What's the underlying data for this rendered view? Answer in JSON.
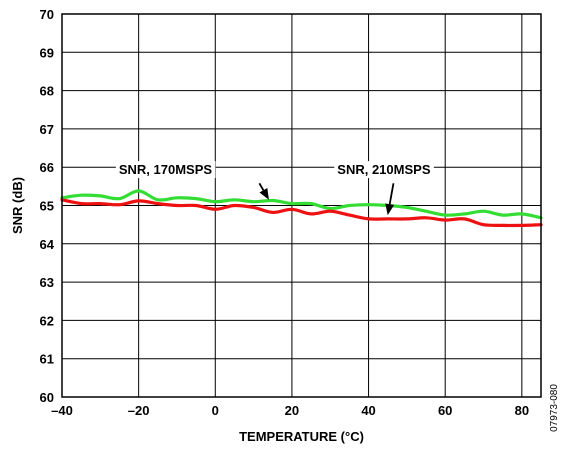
{
  "figure_id": "07973-080",
  "chart_data": {
    "type": "line",
    "title": "",
    "xlabel": "TEMPERATURE (°C)",
    "ylabel": "SNR (dB)",
    "xlim": [
      -40,
      85
    ],
    "ylim": [
      60,
      70
    ],
    "xticks": [
      -40,
      -20,
      0,
      20,
      40,
      60,
      80
    ],
    "xtick_labels": [
      "–40",
      "–20",
      "0",
      "20",
      "40",
      "60",
      "80"
    ],
    "yticks": [
      60,
      61,
      62,
      63,
      64,
      65,
      66,
      67,
      68,
      69,
      70
    ],
    "grid": true,
    "series": [
      {
        "name": "SNR, 170MSPS",
        "color": "#33dd33",
        "x": [
          -40,
          -35,
          -30,
          -25,
          -20,
          -15,
          -10,
          -5,
          0,
          5,
          10,
          15,
          20,
          25,
          30,
          35,
          40,
          45,
          50,
          55,
          60,
          65,
          70,
          75,
          80,
          85
        ],
        "y": [
          65.2,
          65.27,
          65.25,
          65.18,
          65.38,
          65.15,
          65.2,
          65.18,
          65.1,
          65.15,
          65.1,
          65.13,
          65.05,
          65.05,
          64.92,
          65.0,
          65.02,
          65.0,
          64.95,
          64.85,
          64.75,
          64.78,
          64.85,
          64.75,
          64.78,
          64.68
        ]
      },
      {
        "name": "SNR, 210MSPS",
        "color": "#ee1111",
        "x": [
          -40,
          -35,
          -30,
          -25,
          -20,
          -15,
          -10,
          -5,
          0,
          5,
          10,
          15,
          20,
          25,
          30,
          35,
          40,
          45,
          50,
          55,
          60,
          65,
          70,
          75,
          80,
          85
        ],
        "y": [
          65.15,
          65.05,
          65.05,
          65.02,
          65.12,
          65.05,
          65.0,
          65.0,
          64.9,
          65.0,
          64.95,
          64.82,
          64.9,
          64.78,
          64.85,
          64.75,
          64.65,
          64.65,
          64.65,
          64.68,
          64.62,
          64.65,
          64.5,
          64.48,
          64.48,
          64.5
        ]
      }
    ],
    "annotations": [
      {
        "text": "SNR, 170MSPS",
        "label_pos": [
          -13,
          65.82
        ],
        "arrow_from": [
          11.5,
          65.58
        ],
        "arrow_to": [
          14,
          65.15
        ]
      },
      {
        "text": "SNR, 210MSPS",
        "label_pos": [
          44,
          65.82
        ],
        "arrow_from": [
          46.5,
          65.58
        ],
        "arrow_to": [
          45,
          64.75
        ]
      }
    ]
  }
}
